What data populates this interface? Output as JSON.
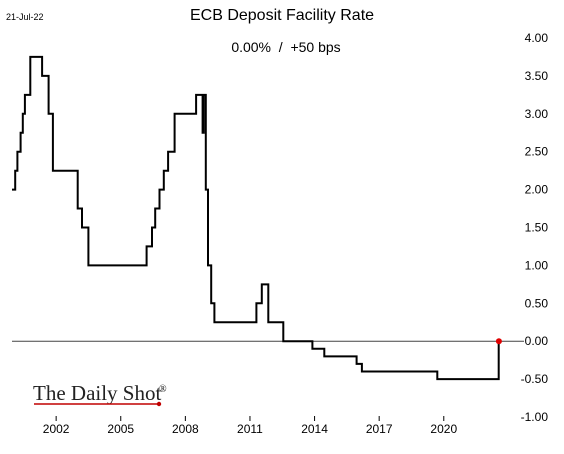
{
  "date_stamp": "21-Jul-22",
  "brand": {
    "name": "The Daily Shot",
    "mark": "®",
    "accent_color": "#c00000"
  },
  "colors": {
    "line": "#000000",
    "zero_line": "#444444",
    "marker": "#e00000",
    "tick": "#000000"
  },
  "chart_data": {
    "type": "line",
    "title": "ECB Deposit Facility Rate",
    "subtitle": "0.00%  /  +50 bps",
    "xlabel": "",
    "ylabel": "",
    "xlim": [
      1999.95,
      2022.75
    ],
    "ylim": [
      -1.0,
      4.0
    ],
    "grid": false,
    "legend": "none",
    "step": true,
    "x_ticks": [
      2002,
      2005,
      2008,
      2011,
      2014,
      2017,
      2020
    ],
    "y_ticks": [
      4.0,
      3.5,
      3.0,
      2.5,
      2.0,
      1.5,
      1.0,
      0.5,
      0.0,
      -0.5,
      -1.0
    ],
    "y_tick_labels": [
      "4.00",
      "3.50",
      "3.00",
      "2.50",
      "2.00",
      "1.50",
      "1.00",
      "0.50",
      "0.00",
      "-0.50",
      "-1.00"
    ],
    "series": [
      {
        "x": [
          1999.95,
          2000.1,
          2000.2,
          2000.35,
          2000.45,
          2000.55,
          2000.8,
          2001.35,
          2001.65,
          2001.85,
          2003.0,
          2003.2,
          2003.5,
          2005.9,
          2006.2,
          2006.45,
          2006.6,
          2006.8,
          2007.0,
          2007.2,
          2007.5,
          2008.5,
          2008.8,
          2008.85,
          2008.95,
          2009.05,
          2009.2,
          2009.35,
          2011.3,
          2011.55,
          2011.85,
          2012.55,
          2013.9,
          2014.45,
          2014.7,
          2015.95,
          2016.2,
          2019.7,
          2022.55,
          2022.56
        ],
        "y": [
          2.0,
          2.25,
          2.5,
          2.75,
          3.0,
          3.25,
          3.75,
          3.5,
          3.0,
          2.25,
          1.75,
          1.5,
          1.0,
          1.0,
          1.25,
          1.5,
          1.75,
          2.0,
          2.25,
          2.5,
          3.0,
          3.25,
          2.75,
          3.25,
          2.0,
          1.0,
          0.5,
          0.25,
          0.5,
          0.75,
          0.25,
          0.0,
          -0.1,
          -0.2,
          -0.2,
          -0.3,
          -0.4,
          -0.5,
          0.0,
          0.0
        ]
      }
    ],
    "last_point": {
      "x": 2022.56,
      "y": 0.0
    }
  }
}
